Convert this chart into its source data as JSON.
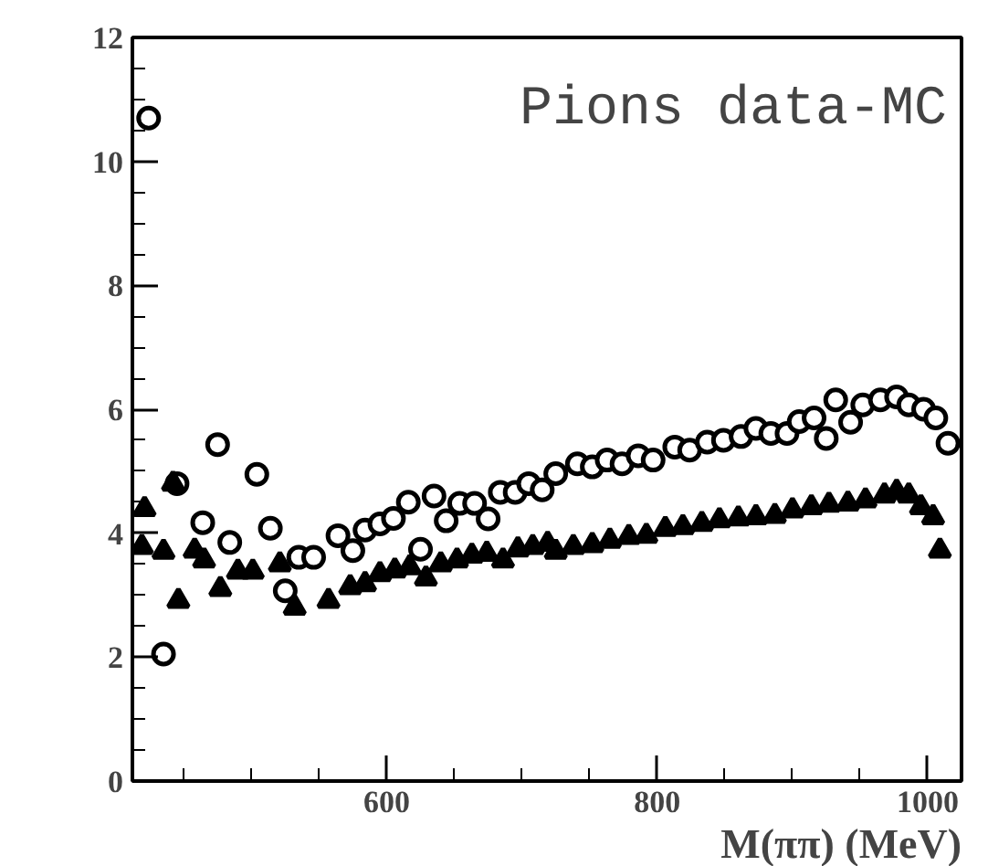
{
  "chart_data": {
    "type": "scatter",
    "xlabel": "M(ππ) (MeV)",
    "annotations": [
      "Pions data-MC"
    ],
    "xlim": [
      412,
      1025
    ],
    "ylim": [
      0,
      12
    ],
    "xticks": [
      600,
      800,
      1000
    ],
    "yticks": [
      0,
      2,
      4,
      6,
      8,
      10,
      12
    ],
    "grid": false,
    "series": [
      {
        "color": "#000000",
        "marker": "circle",
        "x": [
          424,
          435,
          445,
          464,
          475,
          484,
          504,
          514,
          525,
          535,
          546,
          564,
          575,
          584,
          595,
          605,
          616,
          625,
          635,
          644,
          654,
          665,
          675,
          684,
          695,
          705,
          715,
          725,
          741,
          752,
          763,
          774,
          786,
          797,
          813,
          824,
          837,
          849,
          862,
          873,
          884,
          896,
          905,
          916,
          925,
          932,
          943,
          952,
          965,
          977,
          986,
          997,
          1006,
          1015
        ],
        "values": [
          10.7,
          2.05,
          4.8,
          4.17,
          5.43,
          3.85,
          4.95,
          4.08,
          3.07,
          3.61,
          3.61,
          3.96,
          3.72,
          4.05,
          4.15,
          4.24,
          4.5,
          3.74,
          4.6,
          4.2,
          4.48,
          4.48,
          4.23,
          4.66,
          4.66,
          4.8,
          4.7,
          4.96,
          5.12,
          5.07,
          5.18,
          5.12,
          5.25,
          5.18,
          5.39,
          5.34,
          5.47,
          5.5,
          5.56,
          5.69,
          5.61,
          5.61,
          5.8,
          5.86,
          5.53,
          6.15,
          5.79,
          6.07,
          6.15,
          6.2,
          6.07,
          6.0,
          5.86,
          5.45
        ]
      },
      {
        "color": "#000000",
        "marker": "triangle",
        "x": [
          419,
          421,
          435,
          442,
          446,
          458,
          465,
          477,
          490,
          501,
          521,
          532,
          557,
          573,
          584,
          595,
          606,
          617,
          629,
          640,
          652,
          663,
          674,
          686,
          697,
          708,
          719,
          725,
          738,
          752,
          765,
          779,
          792,
          806,
          819,
          833,
          846,
          860,
          873,
          887,
          900,
          914,
          927,
          941,
          954,
          968,
          977,
          986,
          995,
          1004,
          1009
        ],
        "values": [
          3.78,
          4.39,
          3.7,
          4.8,
          2.91,
          3.72,
          3.56,
          3.1,
          3.38,
          3.38,
          3.5,
          2.8,
          2.91,
          3.13,
          3.18,
          3.34,
          3.4,
          3.45,
          3.27,
          3.5,
          3.56,
          3.64,
          3.67,
          3.56,
          3.74,
          3.78,
          3.83,
          3.7,
          3.78,
          3.81,
          3.88,
          3.94,
          3.96,
          4.07,
          4.1,
          4.15,
          4.21,
          4.24,
          4.26,
          4.28,
          4.37,
          4.42,
          4.46,
          4.48,
          4.53,
          4.61,
          4.67,
          4.61,
          4.42,
          4.26,
          3.72
        ]
      }
    ]
  }
}
